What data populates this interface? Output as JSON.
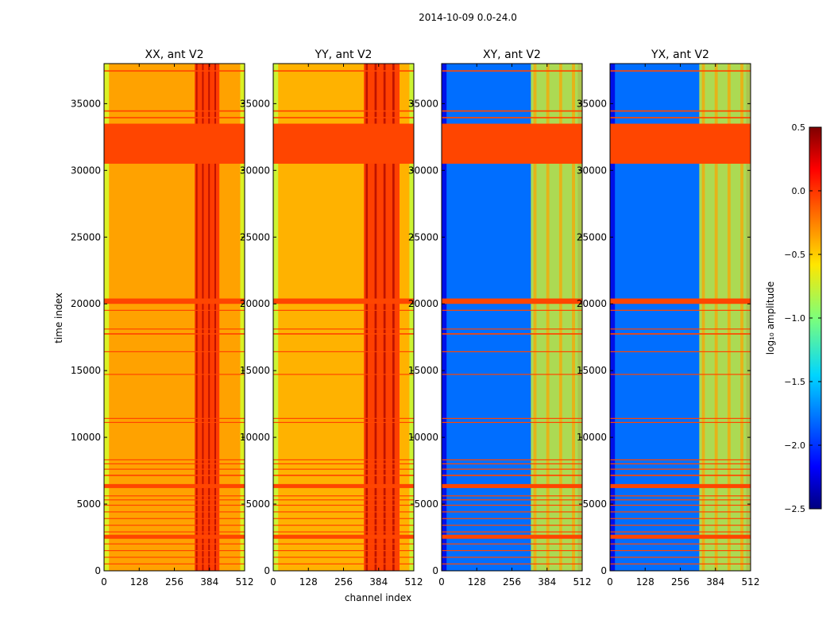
{
  "figure_title": "2014-10-09 0.0-24.0",
  "chart_data": [
    {
      "type": "heatmap",
      "title": "XX, ant V2",
      "xlabel": "channel index",
      "ylabel": "time index",
      "xlim": [
        0,
        512
      ],
      "ylim": [
        0,
        38000
      ],
      "xticks": [
        0,
        128,
        256,
        384,
        512
      ],
      "yticks": [
        0,
        5000,
        10000,
        15000,
        20000,
        25000,
        30000,
        35000
      ],
      "base_level": -0.35,
      "rfi_channels": [
        330,
        420
      ],
      "rfi_level": 0.05
    },
    {
      "type": "heatmap",
      "title": "YY, ant V2",
      "xlabel": "channel index",
      "ylabel": "time index",
      "xlim": [
        0,
        512
      ],
      "ylim": [
        0,
        38000
      ],
      "xticks": [
        0,
        128,
        256,
        384,
        512
      ],
      "yticks": [
        0,
        5000,
        10000,
        15000,
        20000,
        25000,
        30000,
        35000
      ],
      "base_level": -0.4,
      "rfi_channels": [
        330,
        460
      ],
      "rfi_level": 0.05
    },
    {
      "type": "heatmap",
      "title": "XY, ant V2",
      "xlabel": "channel index",
      "ylabel": "time index",
      "xlim": [
        0,
        512
      ],
      "ylim": [
        0,
        38000
      ],
      "xticks": [
        0,
        128,
        256,
        384,
        512
      ],
      "yticks": [
        0,
        5000,
        10000,
        15000,
        20000,
        25000,
        30000,
        35000
      ],
      "base_level": -1.8,
      "rfi_channels": [
        325,
        512
      ],
      "rfi_level": -0.7
    },
    {
      "type": "heatmap",
      "title": "YX, ant V2",
      "xlabel": "channel index",
      "ylabel": "time index",
      "xlim": [
        0,
        512
      ],
      "ylim": [
        0,
        38000
      ],
      "xticks": [
        0,
        128,
        256,
        384,
        512
      ],
      "yticks": [
        0,
        5000,
        10000,
        15000,
        20000,
        25000,
        30000,
        35000
      ],
      "base_level": -1.8,
      "rfi_channels": [
        325,
        512
      ],
      "rfi_level": -0.7
    }
  ],
  "flagged_time_ranges": [
    [
      30500,
      33500
    ],
    [
      20000,
      20400
    ],
    [
      6200,
      6500
    ],
    [
      2400,
      2700
    ],
    [
      37400,
      37500
    ],
    [
      34400,
      34500
    ],
    [
      33900,
      34000
    ],
    [
      19500,
      19550
    ],
    [
      18100,
      18150
    ],
    [
      17700,
      17800
    ],
    [
      16400,
      16450
    ],
    [
      14700,
      14750
    ],
    [
      11400,
      11450
    ],
    [
      11100,
      11150
    ],
    [
      8300,
      8350
    ],
    [
      8000,
      8050
    ],
    [
      7600,
      7650
    ],
    [
      7100,
      7200
    ],
    [
      5600,
      5650
    ],
    [
      5300,
      5350
    ],
    [
      4900,
      4950
    ],
    [
      4400,
      4450
    ],
    [
      3900,
      3950
    ],
    [
      3400,
      3450
    ],
    [
      2900,
      2950
    ],
    [
      2000,
      2050
    ],
    [
      1500,
      1550
    ],
    [
      1000,
      1050
    ],
    [
      500,
      550
    ]
  ],
  "colorbar": {
    "label": "log₁₀ amplitude",
    "min": -2.5,
    "max": 0.5,
    "ticks": [
      0.5,
      0.0,
      -0.5,
      -1.0,
      -1.5,
      -2.0,
      -2.5
    ],
    "tick_labels": [
      "0.5",
      "0.0",
      "−0.5",
      "−1.0",
      "−1.5",
      "−2.0",
      "−2.5"
    ],
    "flag_color": "#ff4500",
    "colormap": "jet"
  }
}
